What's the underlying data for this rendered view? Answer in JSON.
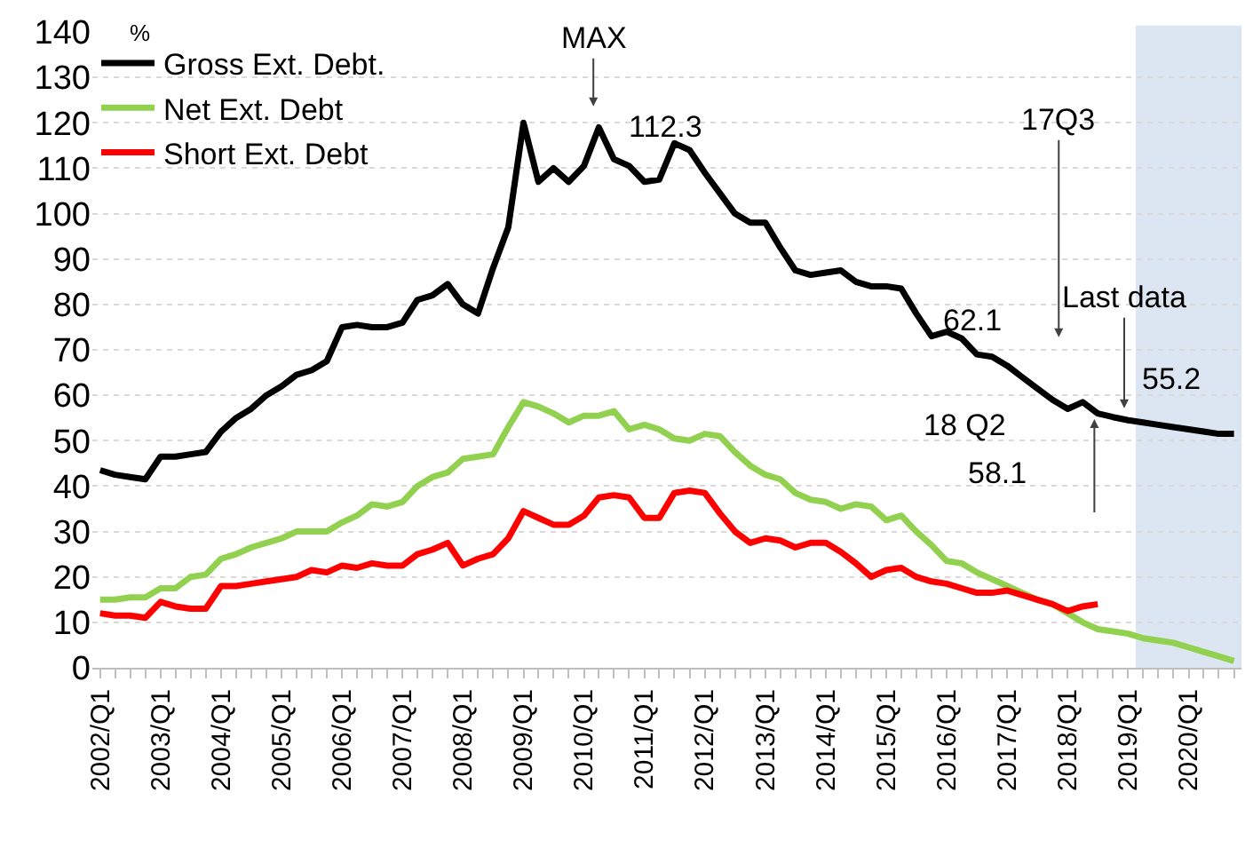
{
  "chart_data": {
    "type": "line",
    "ylabel": "%",
    "x": [
      "2002-01",
      "2002-04",
      "2002-07",
      "2002-10",
      "2003-01",
      "2003-04",
      "2003-07",
      "2003-10",
      "2004-01",
      "2004-04",
      "2004-07",
      "2004-10",
      "2005-01",
      "2005-04",
      "2005-07",
      "2005-10",
      "2006-01",
      "2006-04",
      "2006-07",
      "2006-10",
      "2007-01",
      "2007-04",
      "2007-07",
      "2007-10",
      "2008-01",
      "2008-04",
      "2008-07",
      "2008-10",
      "2009-01",
      "2009-04",
      "2009-07",
      "2009-10",
      "2010-01",
      "2010-04",
      "2010-07",
      "2010-10",
      "2011-01",
      "2011-04",
      "2011-07",
      "2011-10",
      "2012-01",
      "2012-04",
      "2012-07",
      "2012-10",
      "2013-01",
      "2013-04",
      "2013-07",
      "2013-10",
      "2014-01",
      "2014-04",
      "2014-07",
      "2014-10",
      "2015-01",
      "2015-04",
      "2015-07",
      "2015-10",
      "2016-01",
      "2016-04",
      "2016-07",
      "2016-10",
      "2017-01",
      "2017-04",
      "2017-07",
      "2017-10",
      "2018-01",
      "2018-04",
      "2018-07",
      "2018-10",
      "2019-01",
      "2019-04",
      "2019-07",
      "2019-10",
      "2020-01",
      "2020-04",
      "2020-07",
      "2020-10"
    ],
    "series": [
      {
        "name": "Gross Ext. Debt.",
        "color": "#000000",
        "values": [
          43.5,
          42.5,
          42,
          41.5,
          46.5,
          46.5,
          47,
          47.5,
          52,
          55,
          57,
          60,
          62,
          64.5,
          65.5,
          67.5,
          75,
          75.5,
          75,
          75,
          76,
          81,
          82,
          84.5,
          80,
          78,
          88,
          97,
          120,
          107,
          110,
          107,
          110.5,
          119,
          112,
          110.5,
          107,
          107.5,
          115.5,
          114,
          109,
          104.5,
          100,
          98,
          98,
          92.5,
          87.5,
          86.5,
          87,
          87.5,
          85,
          84,
          84,
          83.5,
          78,
          73,
          74,
          72.5,
          69,
          68.5,
          66.5,
          64,
          61.5,
          59,
          57,
          58.5,
          56,
          55.2,
          54.5,
          54,
          53.5,
          53,
          52.5,
          52,
          51.5,
          51.5
        ]
      },
      {
        "name": "Net Ext. Debt",
        "color": "#92d050",
        "values": [
          15,
          15,
          15.5,
          15.5,
          17.5,
          17.5,
          20,
          20.5,
          24,
          25,
          26.5,
          27.5,
          28.5,
          30,
          30,
          30,
          32,
          33.5,
          36,
          35.5,
          36.5,
          40,
          42,
          43,
          46,
          46.5,
          47,
          53,
          58.5,
          57.5,
          56,
          54,
          55.5,
          55.5,
          56.5,
          52.5,
          53.5,
          52.5,
          50.5,
          50,
          51.5,
          51,
          47.5,
          44.5,
          42.5,
          41.5,
          38.5,
          37,
          36.5,
          35,
          36,
          35.5,
          32.5,
          33.5,
          30,
          27,
          23.5,
          23,
          21,
          19.5,
          18,
          16.5,
          15,
          14,
          12,
          10,
          8.5,
          8,
          7.5,
          6.5,
          6,
          5.5,
          4.5,
          3.5,
          2.5,
          1.5
        ]
      },
      {
        "name": "Short Ext. Debt",
        "color": "#ff0000",
        "values": [
          12,
          11.5,
          11.5,
          11,
          14.5,
          13.5,
          13,
          13,
          18,
          18,
          18.5,
          19,
          19.5,
          20,
          21.5,
          21,
          22.5,
          22,
          23,
          22.5,
          22.5,
          25,
          26,
          27.5,
          22.5,
          24,
          25,
          28.5,
          34.5,
          33,
          31.5,
          31.5,
          33.5,
          37.5,
          38,
          37.5,
          33,
          33,
          38.5,
          39,
          38.5,
          34,
          30,
          27.5,
          28.5,
          28,
          26.5,
          27.5,
          27.5,
          25.5,
          23,
          20,
          21.5,
          22,
          20,
          19,
          18.5,
          17.5,
          16.5,
          16.5,
          17,
          16,
          15,
          14,
          12.5,
          13.5,
          14,
          null,
          null,
          null,
          null,
          null,
          null,
          null,
          null,
          null
        ]
      }
    ],
    "xlim": [
      "2001-11-15",
      "2020-11-15"
    ],
    "xticks": [
      {
        "value": "2002-01",
        "label": "2002/Q1"
      },
      {
        "value": "2002-04",
        "label": null
      },
      {
        "value": "2002-07",
        "label": null
      },
      {
        "value": "2002-10",
        "label": null
      },
      {
        "value": "2003-01",
        "label": "2003/Q1"
      },
      {
        "value": "2003-04",
        "label": null
      },
      {
        "value": "2003-07",
        "label": null
      },
      {
        "value": "2003-10",
        "label": null
      },
      {
        "value": "2004-01",
        "label": "2004/Q1"
      },
      {
        "value": "2004-04",
        "label": null
      },
      {
        "value": "2004-07",
        "label": null
      },
      {
        "value": "2004-10",
        "label": null
      },
      {
        "value": "2005-01",
        "label": "2005/Q1"
      },
      {
        "value": "2005-04",
        "label": null
      },
      {
        "value": "2005-07",
        "label": null
      },
      {
        "value": "2005-10",
        "label": null
      },
      {
        "value": "2006-01",
        "label": "2006/Q1"
      },
      {
        "value": "2006-04",
        "label": null
      },
      {
        "value": "2006-07",
        "label": null
      },
      {
        "value": "2006-10",
        "label": null
      },
      {
        "value": "2007-01",
        "label": "2007/Q1"
      },
      {
        "value": "2007-04",
        "label": null
      },
      {
        "value": "2007-07",
        "label": null
      },
      {
        "value": "2007-10",
        "label": null
      },
      {
        "value": "2008-01",
        "label": "2008/Q1"
      },
      {
        "value": "2008-04",
        "label": null
      },
      {
        "value": "2008-07",
        "label": null
      },
      {
        "value": "2008-10",
        "label": null
      },
      {
        "value": "2009-01",
        "label": "2009/Q1"
      },
      {
        "value": "2009-04",
        "label": null
      },
      {
        "value": "2009-07",
        "label": null
      },
      {
        "value": "2009-10",
        "label": null
      },
      {
        "value": "2010-01",
        "label": "2010/Q1"
      },
      {
        "value": "2010-04",
        "label": null
      },
      {
        "value": "2010-07",
        "label": null
      },
      {
        "value": "2010-10",
        "label": null
      },
      {
        "value": "2011-01",
        "label": "2011/Q1"
      },
      {
        "value": "2011-04",
        "label": null
      },
      {
        "value": "2011-07",
        "label": null
      },
      {
        "value": "2011-10",
        "label": null
      },
      {
        "value": "2012-01",
        "label": "2012/Q1"
      },
      {
        "value": "2012-04",
        "label": null
      },
      {
        "value": "2012-07",
        "label": null
      },
      {
        "value": "2012-10",
        "label": null
      },
      {
        "value": "2013-01",
        "label": "2013/Q1"
      },
      {
        "value": "2013-04",
        "label": null
      },
      {
        "value": "2013-07",
        "label": null
      },
      {
        "value": "2013-10",
        "label": null
      },
      {
        "value": "2014-01",
        "label": "2014/Q1"
      },
      {
        "value": "2014-04",
        "label": null
      },
      {
        "value": "2014-07",
        "label": null
      },
      {
        "value": "2014-10",
        "label": null
      },
      {
        "value": "2015-01",
        "label": "2015/Q1"
      },
      {
        "value": "2015-04",
        "label": null
      },
      {
        "value": "2015-07",
        "label": null
      },
      {
        "value": "2015-10",
        "label": null
      },
      {
        "value": "2016-01",
        "label": "2016/Q1"
      },
      {
        "value": "2016-04",
        "label": null
      },
      {
        "value": "2016-07",
        "label": null
      },
      {
        "value": "2016-10",
        "label": null
      },
      {
        "value": "2017-01",
        "label": "2017/Q1"
      },
      {
        "value": "2017-04",
        "label": null
      },
      {
        "value": "2017-07",
        "label": null
      },
      {
        "value": "2017-10",
        "label": null
      },
      {
        "value": "2018-01",
        "label": "2018/Q1"
      },
      {
        "value": "2018-04",
        "label": null
      },
      {
        "value": "2018-07",
        "label": null
      },
      {
        "value": "2018-10",
        "label": null
      },
      {
        "value": "2019-01",
        "label": "2019/Q1"
      },
      {
        "value": "2019-04",
        "label": null
      },
      {
        "value": "2019-07",
        "label": null
      },
      {
        "value": "2019-10",
        "label": null
      },
      {
        "value": "2020-01",
        "label": "2020/Q1"
      },
      {
        "value": "2020-04",
        "label": null
      },
      {
        "value": "2020-07",
        "label": null
      },
      {
        "value": "2020-10",
        "label": null
      }
    ],
    "ylim": [
      0,
      140
    ],
    "yticks": [
      0,
      10,
      20,
      30,
      40,
      50,
      60,
      70,
      80,
      90,
      100,
      110,
      120,
      130,
      140
    ],
    "bands": [
      {
        "axis": "x",
        "from": "2019-02-15",
        "to": "2020-11-15",
        "color": "#dce6f2"
      }
    ],
    "annotations": [
      "MAX",
      "112.3",
      "17Q3",
      "62.1",
      "18 Q2",
      "58.1",
      "Last data",
      "55.2"
    ],
    "grid": "y",
    "legend": "top left",
    "marker": "none",
    "line_style": "solid"
  }
}
